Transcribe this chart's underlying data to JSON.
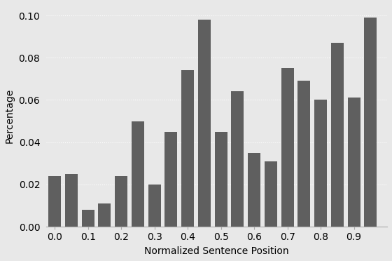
{
  "bar_values": [
    0.024,
    0.025,
    0.008,
    0.011,
    0.024,
    0.05,
    0.02,
    0.045,
    0.074,
    0.098,
    0.045,
    0.064,
    0.035,
    0.031,
    0.075,
    0.069,
    0.06,
    0.087,
    0.061,
    0.099
  ],
  "bar_positions": [
    0.0,
    0.05,
    0.1,
    0.15,
    0.2,
    0.25,
    0.3,
    0.35,
    0.4,
    0.45,
    0.5,
    0.55,
    0.6,
    0.65,
    0.7,
    0.75,
    0.8,
    0.85,
    0.9,
    0.95
  ],
  "bar_color": "#5f5f5f",
  "bar_width": 0.038,
  "xlabel": "Normalized Sentence Position",
  "ylabel": "Percentage",
  "xlim": [
    -0.025,
    1.0
  ],
  "ylim": [
    0.0,
    0.105
  ],
  "yticks": [
    0.0,
    0.02,
    0.04,
    0.06,
    0.08,
    0.1
  ],
  "xticks": [
    0.0,
    0.1,
    0.2,
    0.3,
    0.4,
    0.5,
    0.6,
    0.7,
    0.8,
    0.9
  ],
  "xtick_labels": [
    "0.0",
    "0.1",
    "0.2",
    "0.3",
    "0.4",
    "0.5",
    "0.6",
    "0.7",
    "0.8",
    "0.9"
  ],
  "ytick_labels": [
    "0.00",
    "0.02",
    "0.04",
    "0.06",
    "0.08",
    "0.10"
  ],
  "background_color": "#e8e8e8",
  "grid_color": "#ffffff",
  "font_size": 10,
  "figsize": [
    5.6,
    3.72
  ],
  "dpi": 100
}
